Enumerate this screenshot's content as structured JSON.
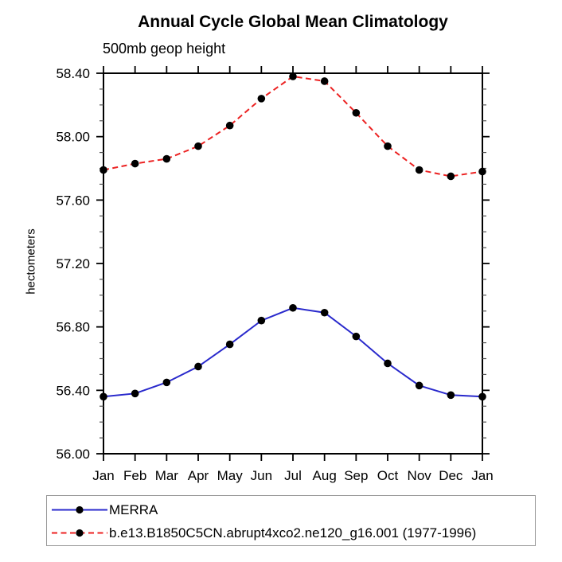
{
  "chart_data": {
    "type": "line",
    "title": "Annual Cycle Global Mean Climatology",
    "subtitle": "500mb geop height",
    "ylabel": "hectometers",
    "xlabel": "",
    "categories": [
      "Jan",
      "Feb",
      "Mar",
      "Apr",
      "May",
      "Jun",
      "Jul",
      "Aug",
      "Sep",
      "Oct",
      "Nov",
      "Dec",
      "Jan"
    ],
    "ylim": [
      56.0,
      58.4
    ],
    "ytick_major_step": 0.4,
    "ytick_minor_step": 0.1,
    "ytick_labels": [
      "56.00",
      "56.40",
      "56.80",
      "57.20",
      "57.60",
      "58.00",
      "58.40"
    ],
    "grid": false,
    "legend_position": "bottom-left-box",
    "series": [
      {
        "name": "MERRA",
        "line_style": "solid",
        "color": "#2929cc",
        "marker": "black-filled-circle",
        "values": [
          56.36,
          56.38,
          56.45,
          56.55,
          56.69,
          56.84,
          56.92,
          56.89,
          56.74,
          56.57,
          56.43,
          56.37,
          56.36
        ]
      },
      {
        "name": "b.e13.B1850C5CN.abrupt4xco2.ne120_g16.001 (1977-1996)",
        "line_style": "dashed",
        "color": "#ec2222",
        "marker": "black-filled-circle",
        "values": [
          57.79,
          57.83,
          57.86,
          57.94,
          58.07,
          58.24,
          58.38,
          58.35,
          58.15,
          57.94,
          57.79,
          57.75,
          57.78
        ]
      }
    ]
  },
  "colors": {
    "axis": "#000000",
    "minor_tick": "#555555",
    "marker": "#000000",
    "legend_border": "#999999",
    "background": "#ffffff"
  }
}
